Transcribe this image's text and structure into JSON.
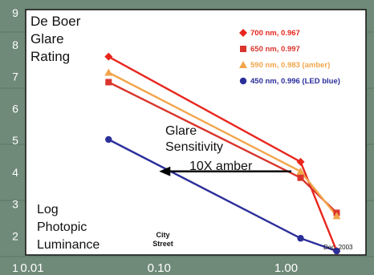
{
  "chart_data": {
    "type": "line",
    "x_scale": "log",
    "xlim": [
      0.01,
      3
    ],
    "ylim": [
      1,
      9
    ],
    "grid": false,
    "legend_placement": "top-right",
    "x_ticks": [
      {
        "value": 0.01,
        "label": "0.01"
      },
      {
        "value": 0.1,
        "label": "0.10"
      },
      {
        "value": 1.0,
        "label": "1.00"
      }
    ],
    "y_ticks": [
      1,
      2,
      3,
      4,
      5,
      6,
      7,
      8,
      9
    ],
    "title_lines": [
      "De Boer",
      "Glare",
      "Rating"
    ],
    "xlabel_lines": [
      "Log",
      "Photopic",
      "Luminance"
    ],
    "annotations": {
      "sensitivity_lines": [
        "Glare",
        "Sensitivity"
      ],
      "arrow_label": "10X amber",
      "city_street_lines": [
        "City",
        "Street"
      ],
      "date": "Dec. 2003"
    },
    "x": [
      0.04,
      1.3,
      2.5
    ],
    "series": [
      {
        "name": "700 nm, 0.967",
        "marker": "diamond",
        "color": "#e8261e",
        "values": [
          7.6,
          4.3,
          1.5
        ]
      },
      {
        "name": "650 nm, 0.997",
        "marker": "square",
        "color": "#d9352c",
        "values": [
          6.8,
          3.8,
          2.7
        ]
      },
      {
        "name": "590 nm, 0.983 (amber)",
        "marker": "triangle",
        "color": "#f2a54a",
        "values": [
          7.1,
          4.0,
          2.6
        ]
      },
      {
        "name": "450 nm, 0.996 (LED blue)",
        "marker": "circle",
        "color": "#2b2f9a",
        "values": [
          5.0,
          1.9,
          1.5
        ]
      }
    ],
    "arrow": {
      "x_from": 1.1,
      "x_to": 0.1,
      "y": 4.0
    }
  }
}
